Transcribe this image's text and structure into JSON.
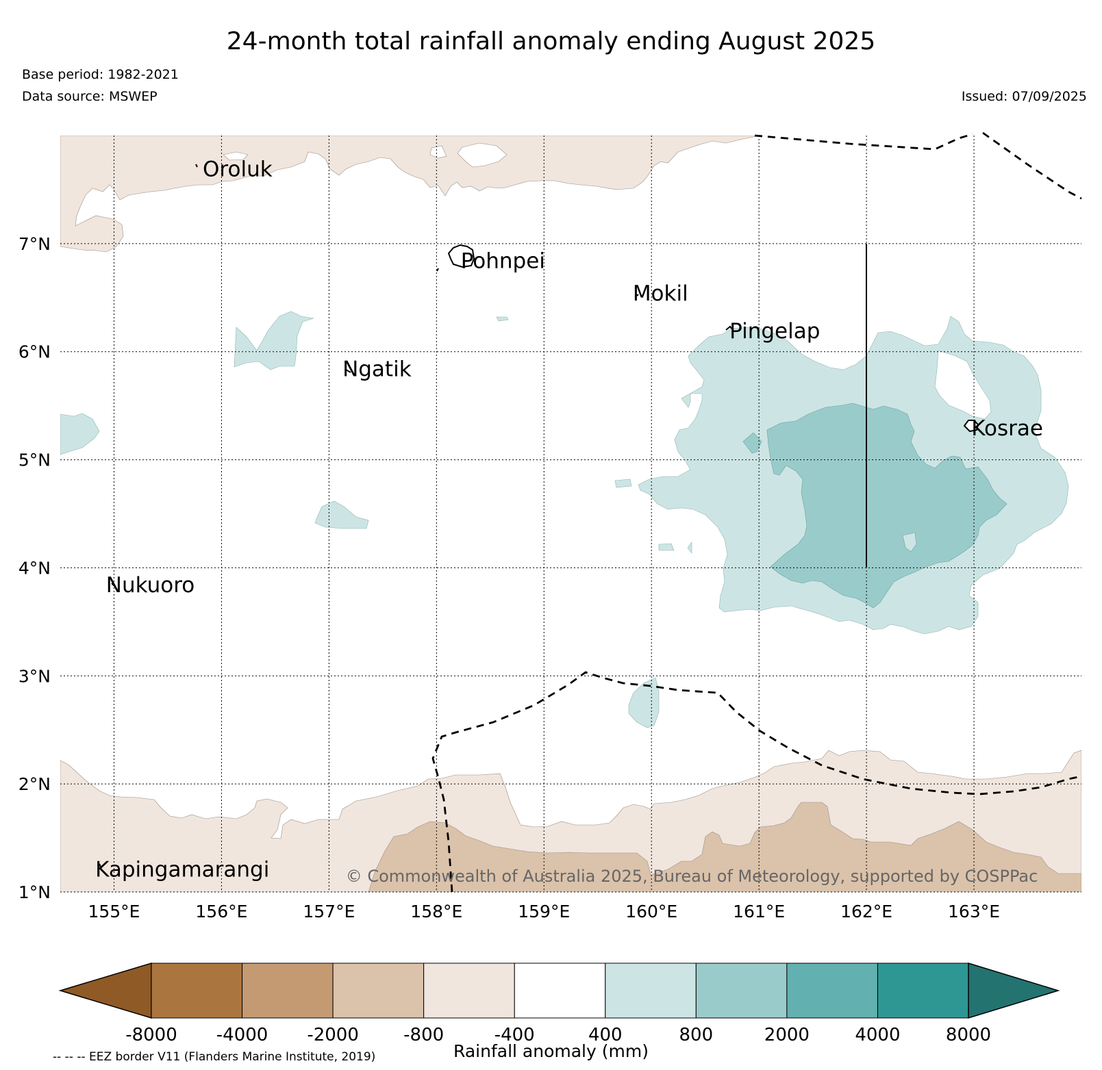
{
  "title": "24-month total rainfall anomaly ending August 2025",
  "base_period": "Base period: 1982-2021",
  "data_source": "Data source: MSWEP",
  "issued": "Issued: 07/09/2025",
  "copyright": "© Commonwealth of Australia 2025, Bureau of Meteorology, supported by COSPPac",
  "eez_note": "-- -- -- EEZ border V11 (Flanders Marine Institute, 2019)",
  "map": {
    "lon_range": [
      154.5,
      164.0
    ],
    "lat_range": [
      1.0,
      8.0
    ],
    "lon_ticks": [
      {
        "value": 155,
        "label": "155°E"
      },
      {
        "value": 156,
        "label": "156°E"
      },
      {
        "value": 157,
        "label": "157°E"
      },
      {
        "value": 158,
        "label": "158°E"
      },
      {
        "value": 159,
        "label": "159°E"
      },
      {
        "value": 160,
        "label": "160°E"
      },
      {
        "value": 161,
        "label": "161°E"
      },
      {
        "value": 162,
        "label": "162°E"
      },
      {
        "value": 163,
        "label": "163°E"
      }
    ],
    "lat_ticks": [
      {
        "value": 1,
        "label": "1°N"
      },
      {
        "value": 2,
        "label": "2°N"
      },
      {
        "value": 3,
        "label": "3°N"
      },
      {
        "value": 4,
        "label": "4°N"
      },
      {
        "value": 5,
        "label": "5°N"
      },
      {
        "value": 6,
        "label": "6°N"
      },
      {
        "value": 7,
        "label": "7°N"
      }
    ],
    "places": [
      {
        "name": "Oroluk",
        "lon": 155.8,
        "lat": 7.7
      },
      {
        "name": "Pohnpei",
        "lon": 158.2,
        "lat": 6.85
      },
      {
        "name": "Mokil",
        "lon": 159.8,
        "lat": 6.55
      },
      {
        "name": "Pingelap",
        "lon": 160.7,
        "lat": 6.2
      },
      {
        "name": "Ngatik",
        "lon": 157.1,
        "lat": 5.85
      },
      {
        "name": "Kosrae",
        "lon": 162.95,
        "lat": 5.3
      },
      {
        "name": "Nukuoro",
        "lon": 154.9,
        "lat": 3.85
      },
      {
        "name": "Kapingamarangi",
        "lon": 154.8,
        "lat": 1.22
      }
    ]
  },
  "colorbar": {
    "label": "Rainfall anomaly (mm)",
    "tick_labels": [
      "-8000",
      "-4000",
      "-2000",
      "-800",
      "-400",
      "400",
      "800",
      "2000",
      "4000",
      "8000"
    ],
    "bin_colors": [
      "#8f5a25",
      "#ab7540",
      "#c49a72",
      "#dbc2aa",
      "#f0e6de",
      "#ffffff",
      "#cce5e4",
      "#9acbcb",
      "#62b0af",
      "#2e9793",
      "#237371"
    ]
  },
  "colors": {
    "eez_line": "#000000",
    "grid": "#000000",
    "copyright_text": "#666666"
  }
}
